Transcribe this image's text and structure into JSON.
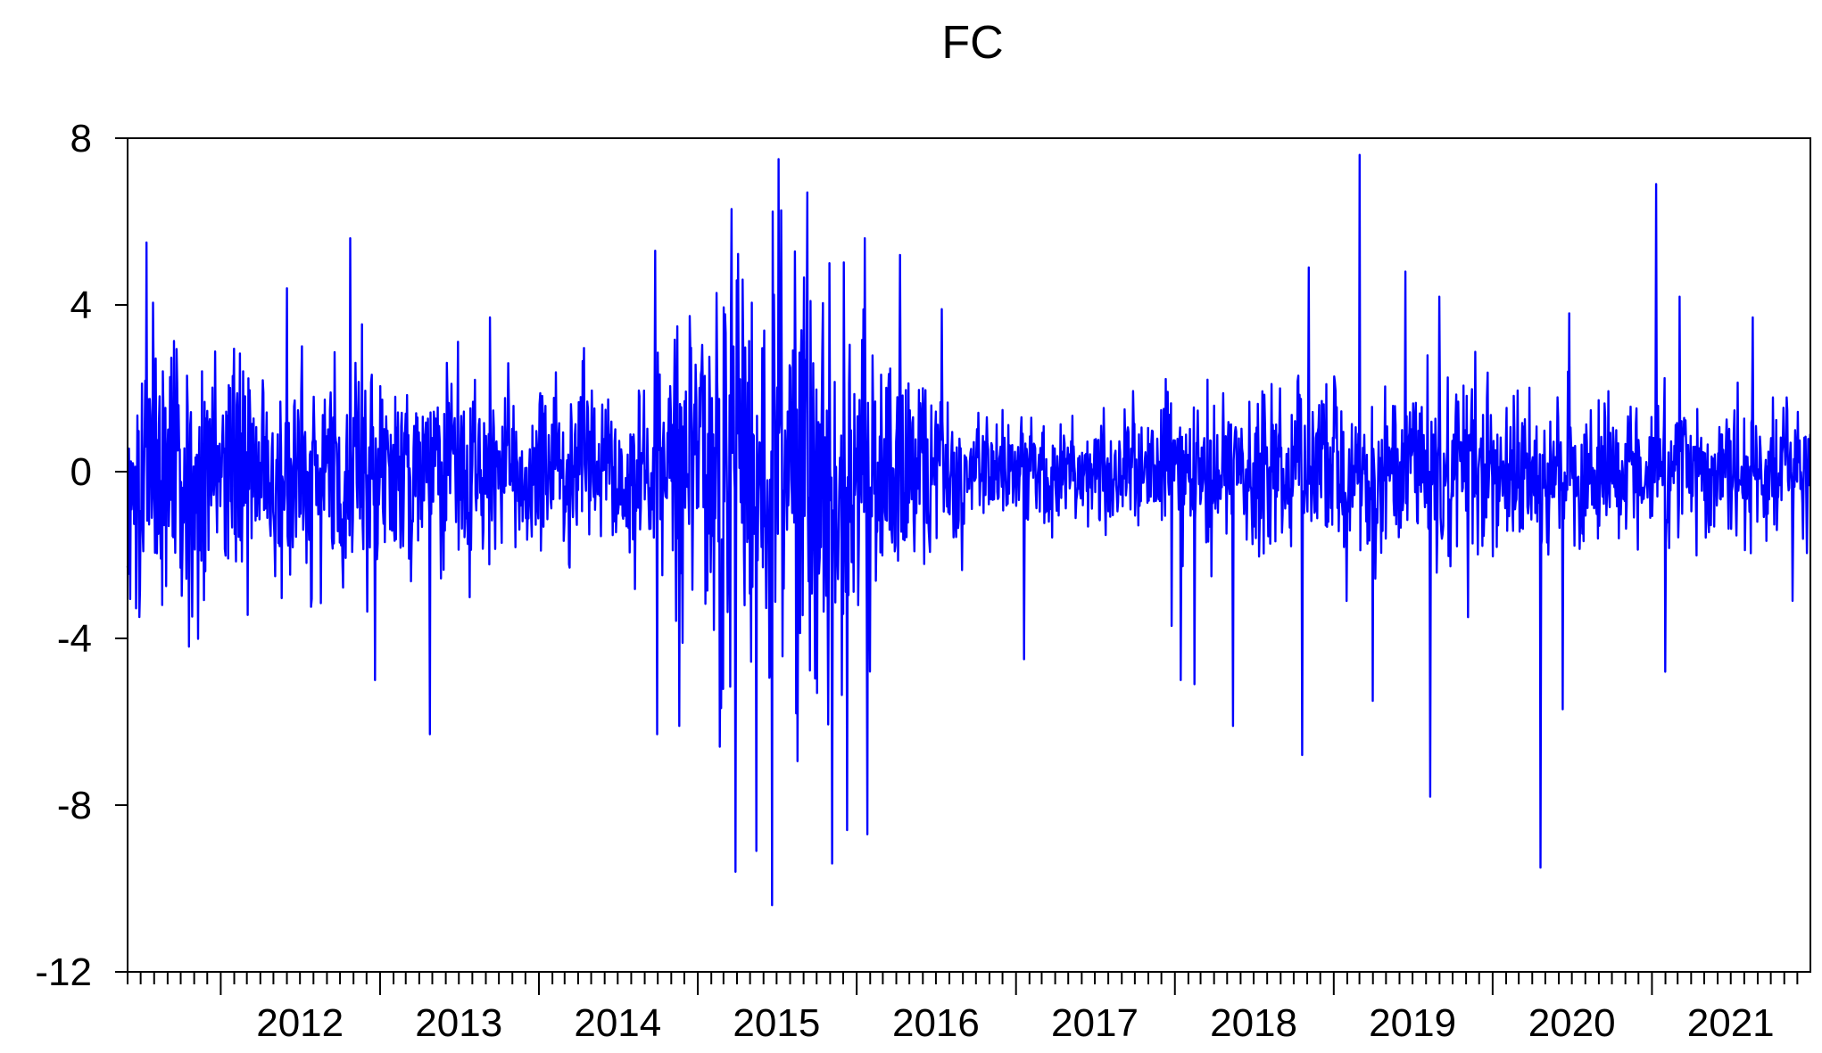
{
  "chart_data": {
    "type": "line",
    "title": "FC",
    "xlabel": "",
    "ylabel": "",
    "x_range": [
      "2011-06-01",
      "2021-12-31"
    ],
    "ylim": [
      -12,
      8
    ],
    "yticks": [
      8,
      4,
      0,
      -4,
      -8,
      -12
    ],
    "x_tick_labels": [
      "2012",
      "2013",
      "2014",
      "2015",
      "2016",
      "2017",
      "2018",
      "2019",
      "2020",
      "2021"
    ],
    "grid": false,
    "legend": "none",
    "line_color": "#0000ff",
    "volatility_profile": [
      {
        "x": "2011-06-01",
        "amplitude": 2.6
      },
      {
        "x": "2012-06-01",
        "amplitude": 2.3
      },
      {
        "x": "2013-06-01",
        "amplitude": 1.9
      },
      {
        "x": "2014-06-01",
        "amplitude": 1.6
      },
      {
        "x": "2014-12-01",
        "amplitude": 2.6
      },
      {
        "x": "2015-06-01",
        "amplitude": 4.6
      },
      {
        "x": "2015-12-01",
        "amplitude": 3.4
      },
      {
        "x": "2016-06-01",
        "amplitude": 1.8
      },
      {
        "x": "2016-12-01",
        "amplitude": 1.0
      },
      {
        "x": "2017-06-01",
        "amplitude": 1.0
      },
      {
        "x": "2017-12-01",
        "amplitude": 1.3
      },
      {
        "x": "2018-06-01",
        "amplitude": 1.7
      },
      {
        "x": "2018-12-01",
        "amplitude": 1.8
      },
      {
        "x": "2019-06-01",
        "amplitude": 1.6
      },
      {
        "x": "2020-01-01",
        "amplitude": 1.9
      },
      {
        "x": "2020-06-01",
        "amplitude": 1.6
      },
      {
        "x": "2021-06-01",
        "amplitude": 1.3
      },
      {
        "x": "2021-12-31",
        "amplitude": 1.2
      }
    ],
    "extreme_points": [
      {
        "x": "2011-07-15",
        "y": 5.5
      },
      {
        "x": "2011-08-20",
        "y": -3.2
      },
      {
        "x": "2011-10-20",
        "y": -4.2
      },
      {
        "x": "2012-06-01",
        "y": 4.4
      },
      {
        "x": "2012-10-25",
        "y": 5.6
      },
      {
        "x": "2012-12-20",
        "y": -5.0
      },
      {
        "x": "2013-04-25",
        "y": -6.3
      },
      {
        "x": "2013-09-10",
        "y": 3.7
      },
      {
        "x": "2014-09-25",
        "y": 5.3
      },
      {
        "x": "2014-09-30",
        "y": -6.3
      },
      {
        "x": "2014-11-20",
        "y": -6.1
      },
      {
        "x": "2015-02-20",
        "y": -6.6
      },
      {
        "x": "2015-03-20",
        "y": 6.3
      },
      {
        "x": "2015-03-28",
        "y": -9.6
      },
      {
        "x": "2015-05-15",
        "y": -9.1
      },
      {
        "x": "2015-06-20",
        "y": -10.4
      },
      {
        "x": "2015-07-05",
        "y": 7.5
      },
      {
        "x": "2015-08-15",
        "y": -5.8
      },
      {
        "x": "2015-09-10",
        "y": 6.7
      },
      {
        "x": "2015-11-05",
        "y": -9.4
      },
      {
        "x": "2015-12-10",
        "y": -8.6
      },
      {
        "x": "2016-01-20",
        "y": 5.6
      },
      {
        "x": "2016-01-25",
        "y": -8.7
      },
      {
        "x": "2016-04-10",
        "y": 5.2
      },
      {
        "x": "2016-07-15",
        "y": 3.9
      },
      {
        "x": "2017-01-20",
        "y": -4.5
      },
      {
        "x": "2017-12-25",
        "y": -3.7
      },
      {
        "x": "2018-01-15",
        "y": -5.0
      },
      {
        "x": "2018-02-15",
        "y": -5.1
      },
      {
        "x": "2018-05-15",
        "y": -6.1
      },
      {
        "x": "2018-10-20",
        "y": -6.8
      },
      {
        "x": "2018-11-05",
        "y": 4.9
      },
      {
        "x": "2019-03-01",
        "y": 7.6
      },
      {
        "x": "2019-04-01",
        "y": -5.5
      },
      {
        "x": "2019-06-15",
        "y": 4.8
      },
      {
        "x": "2019-08-10",
        "y": -7.8
      },
      {
        "x": "2019-09-01",
        "y": 4.2
      },
      {
        "x": "2020-04-20",
        "y": -9.5
      },
      {
        "x": "2020-06-10",
        "y": -5.7
      },
      {
        "x": "2020-06-25",
        "y": 3.8
      },
      {
        "x": "2021-01-10",
        "y": 6.9
      },
      {
        "x": "2021-02-01",
        "y": -4.8
      },
      {
        "x": "2021-03-05",
        "y": 4.2
      },
      {
        "x": "2021-08-20",
        "y": 3.7
      },
      {
        "x": "2021-11-20",
        "y": -3.1
      }
    ]
  }
}
